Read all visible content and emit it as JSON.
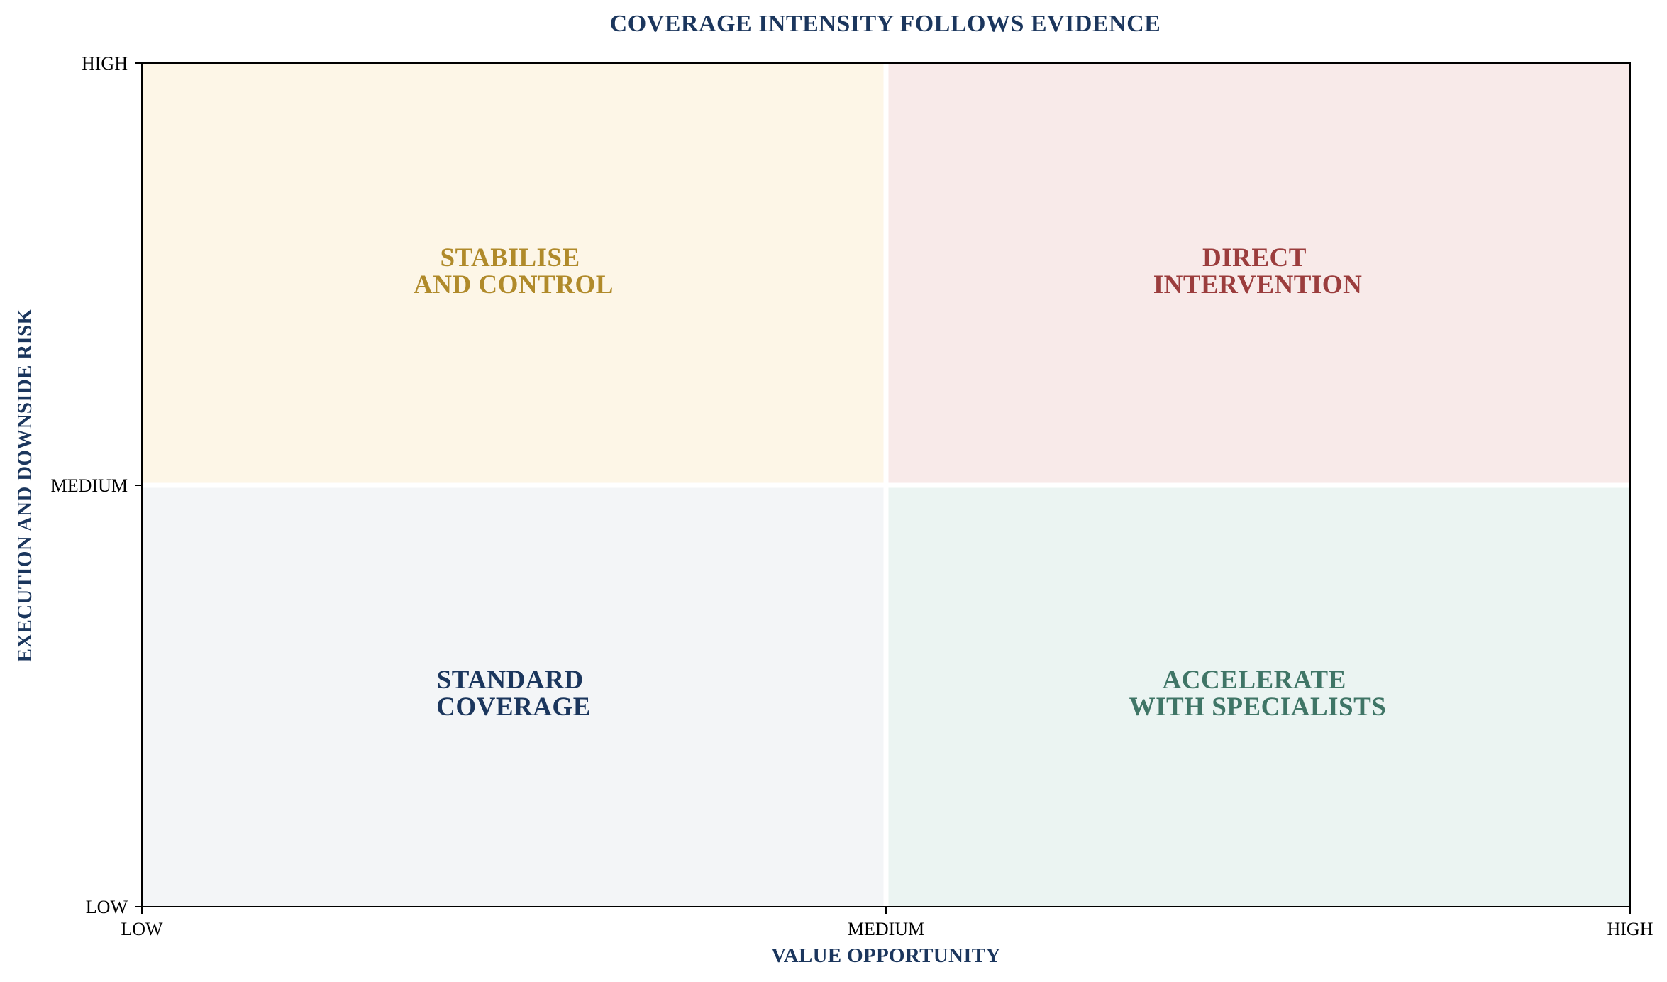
{
  "title": "COVERAGE INTENSITY FOLLOWS EVIDENCE",
  "x_axis": {
    "label": "VALUE OPPORTUNITY",
    "ticks": [
      "LOW",
      "MEDIUM",
      "HIGH"
    ]
  },
  "y_axis": {
    "label": "EXECUTION AND DOWNSIDE RISK",
    "ticks": [
      "LOW",
      "MEDIUM",
      "HIGH"
    ]
  },
  "quadrants": {
    "top_left": {
      "line1": "STABILISE",
      "line2": "AND CONTROL",
      "fill": "#fdf6e7",
      "text_color": "#b08a2a"
    },
    "top_right": {
      "line1": "DIRECT",
      "line2": "INTERVENTION",
      "fill": "#f8eae9",
      "text_color": "#9b3d3d"
    },
    "bottom_left": {
      "line1": "STANDARD",
      "line2": "COVERAGE",
      "fill": "#f3f5f7",
      "text_color": "#1b365d"
    },
    "bottom_right": {
      "line1": "ACCELERATE",
      "line2": "WITH SPECIALISTS",
      "fill": "#ebf4f2",
      "text_color": "#3f7566"
    }
  },
  "colors": {
    "title": "#1b365d",
    "axis_label": "#1b365d",
    "frame": "#000000",
    "divider": "#ffffff"
  }
}
